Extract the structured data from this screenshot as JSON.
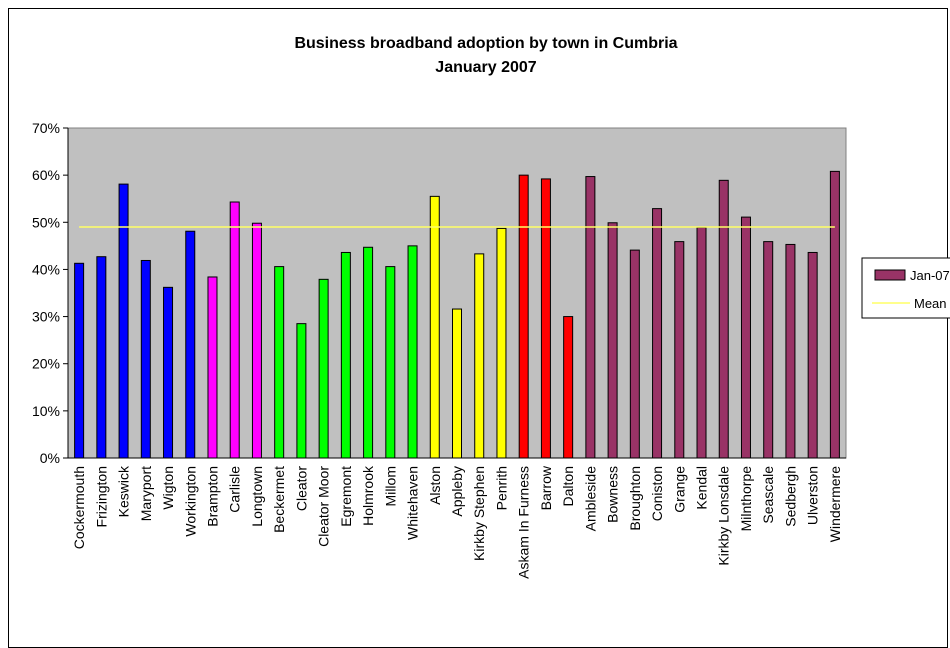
{
  "chart_data": {
    "type": "bar",
    "title": "Business broadband adoption by town in Cumbria",
    "subtitle": "January 2007",
    "xlabel": "",
    "ylabel": "",
    "ylim": [
      0,
      0.7
    ],
    "yticks": [
      "0%",
      "10%",
      "20%",
      "30%",
      "40%",
      "50%",
      "60%",
      "70%"
    ],
    "grid": false,
    "legend_position": "right",
    "categories": [
      "Cockermouth",
      "Frizington",
      "Keswick",
      "Maryport",
      "Wigton",
      "Workington",
      "Brampton",
      "Carlisle",
      "Longtown",
      "Beckermet",
      "Cleator",
      "Cleator Moor",
      "Egremont",
      "Holmrook",
      "Millom",
      "Whitehaven",
      "Alston",
      "Appleby",
      "Kirkby Stephen",
      "Penrith",
      "Askam In Furness",
      "Barrow",
      "Dalton",
      "Ambleside",
      "Bowness",
      "Broughton",
      "Coniston",
      "Grange",
      "Kendal",
      "Kirkby Lonsdale",
      "Milnthorpe",
      "Seascale",
      "Sedbergh",
      "Ulverston",
      "Windermere"
    ],
    "series": [
      {
        "name": "Jan-07",
        "values": [
          0.413,
          0.427,
          0.581,
          0.419,
          0.362,
          0.481,
          0.384,
          0.543,
          0.498,
          0.406,
          0.285,
          0.379,
          0.436,
          0.447,
          0.406,
          0.45,
          0.555,
          0.316,
          0.433,
          0.487,
          0.6,
          0.592,
          0.3,
          0.597,
          0.499,
          0.441,
          0.529,
          0.459,
          0.489,
          0.589,
          0.511,
          0.459,
          0.453,
          0.436,
          0.608
        ],
        "colors": [
          "#0000ff",
          "#0000ff",
          "#0000ff",
          "#0000ff",
          "#0000ff",
          "#0000ff",
          "#ff00ff",
          "#ff00ff",
          "#ff00ff",
          "#00ff00",
          "#00ff00",
          "#00ff00",
          "#00ff00",
          "#00ff00",
          "#00ff00",
          "#00ff00",
          "#ffff00",
          "#ffff00",
          "#ffff00",
          "#ffff00",
          "#ff0000",
          "#ff0000",
          "#ff0000",
          "#993366",
          "#993366",
          "#993366",
          "#993366",
          "#993366",
          "#993366",
          "#993366",
          "#993366",
          "#993366",
          "#993366",
          "#993366",
          "#993366"
        ]
      }
    ],
    "mean": {
      "name": "Mean",
      "value": 0.49,
      "color": "#ffff66"
    },
    "plot_background": "#c0c0c0",
    "legend_swatch_color": "#993366"
  }
}
